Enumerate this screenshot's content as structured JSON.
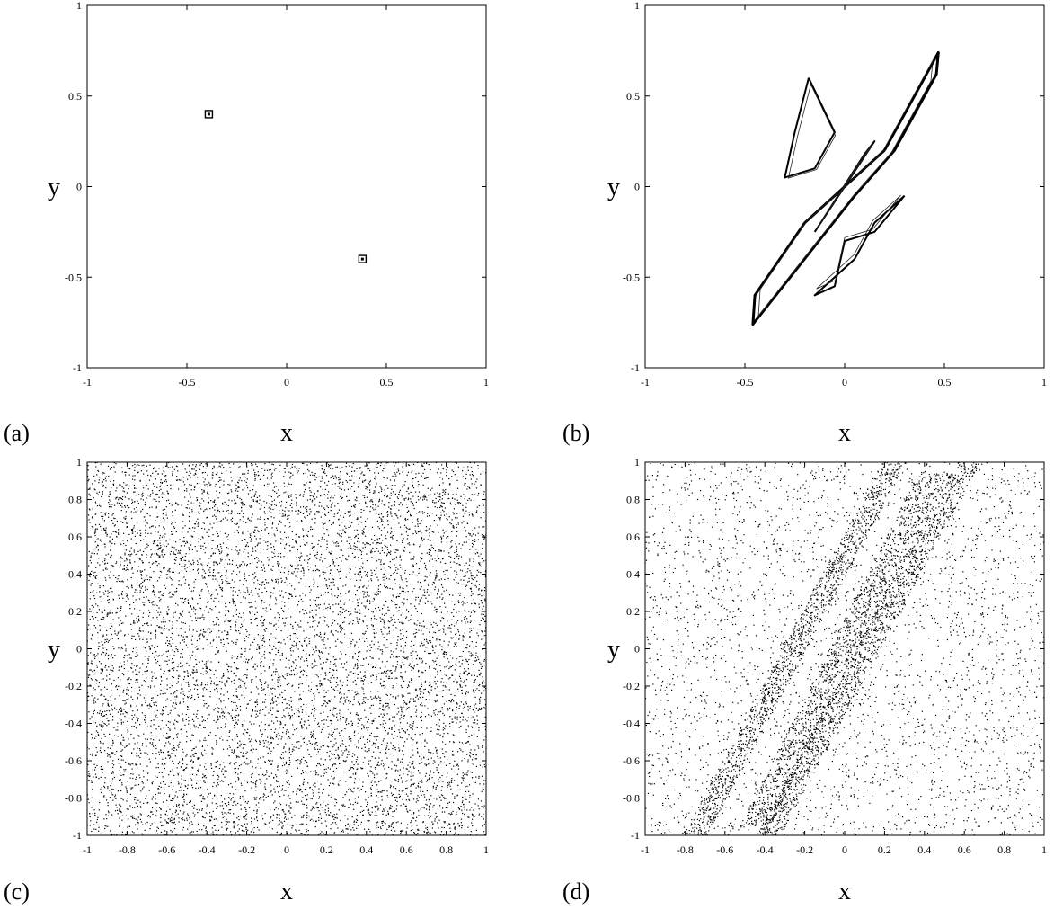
{
  "chart_data": [
    {
      "panel_label": "(a)",
      "type": "scatter",
      "xlabel": "x",
      "ylabel": "y",
      "xlim": [
        -1,
        1
      ],
      "ylim": [
        -1,
        1
      ],
      "xticks": [
        -1,
        -0.5,
        0,
        0.5,
        1
      ],
      "yticks": [
        -1,
        -0.5,
        0,
        0.5,
        1
      ],
      "grid": false,
      "series": [
        {
          "points": [
            [
              -0.39,
              0.4
            ],
            [
              0.38,
              -0.4
            ]
          ]
        }
      ]
    },
    {
      "panel_label": "(b)",
      "type": "line",
      "xlabel": "x",
      "ylabel": "y",
      "xlim": [
        -1,
        1
      ],
      "ylim": [
        -1,
        1
      ],
      "xticks": [
        -1,
        -0.5,
        0,
        0.5,
        1
      ],
      "yticks": [
        -1,
        -0.5,
        0,
        0.5,
        1
      ],
      "grid": false,
      "series": [
        {
          "points": [
            [
              0.2,
              0.2
            ],
            [
              0.47,
              0.74
            ],
            [
              0.46,
              0.62
            ],
            [
              0.25,
              0.2
            ],
            [
              0.05,
              -0.05
            ],
            [
              -0.46,
              -0.76
            ],
            [
              -0.45,
              -0.6
            ],
            [
              -0.2,
              -0.2
            ],
            [
              0.2,
              0.2
            ]
          ]
        },
        {
          "points": [
            [
              -0.18,
              0.6
            ],
            [
              -0.25,
              0.3
            ],
            [
              -0.3,
              0.05
            ],
            [
              -0.15,
              0.1
            ],
            [
              -0.05,
              0.3
            ],
            [
              -0.18,
              0.6
            ]
          ]
        },
        {
          "points": [
            [
              0.3,
              -0.05
            ],
            [
              0.15,
              -0.25
            ],
            [
              0.0,
              -0.3
            ],
            [
              -0.05,
              -0.55
            ],
            [
              -0.15,
              -0.6
            ],
            [
              0.05,
              -0.4
            ],
            [
              0.15,
              -0.2
            ],
            [
              0.3,
              -0.05
            ]
          ]
        },
        {
          "points": [
            [
              -0.15,
              -0.25
            ],
            [
              0.15,
              0.25
            ],
            [
              0.1,
              0.18
            ],
            [
              -0.12,
              -0.2
            ]
          ]
        }
      ]
    },
    {
      "panel_label": "(c)",
      "type": "scatter",
      "xlabel": "x",
      "ylabel": "y",
      "xlim": [
        -1,
        1
      ],
      "ylim": [
        -1,
        1
      ],
      "xticks": [
        -1,
        -0.8,
        -0.6,
        -0.4,
        -0.2,
        0,
        0.2,
        0.4,
        0.6,
        0.8,
        1
      ],
      "yticks": [
        -1,
        -0.8,
        -0.6,
        -0.4,
        -0.2,
        0,
        0.2,
        0.4,
        0.6,
        0.8,
        1
      ],
      "grid": false,
      "distribution": "uniform"
    },
    {
      "panel_label": "(d)",
      "type": "scatter",
      "xlabel": "x",
      "ylabel": "y",
      "xlim": [
        -1,
        1
      ],
      "ylim": [
        -1,
        1
      ],
      "xticks": [
        -1,
        -0.8,
        -0.6,
        -0.4,
        -0.2,
        0,
        0.2,
        0.4,
        0.6,
        0.8,
        1
      ],
      "yticks": [
        -1,
        -0.8,
        -0.6,
        -0.4,
        -0.2,
        0,
        0.2,
        0.4,
        0.6,
        0.8,
        1
      ],
      "grid": false,
      "distribution": "clustered"
    }
  ]
}
